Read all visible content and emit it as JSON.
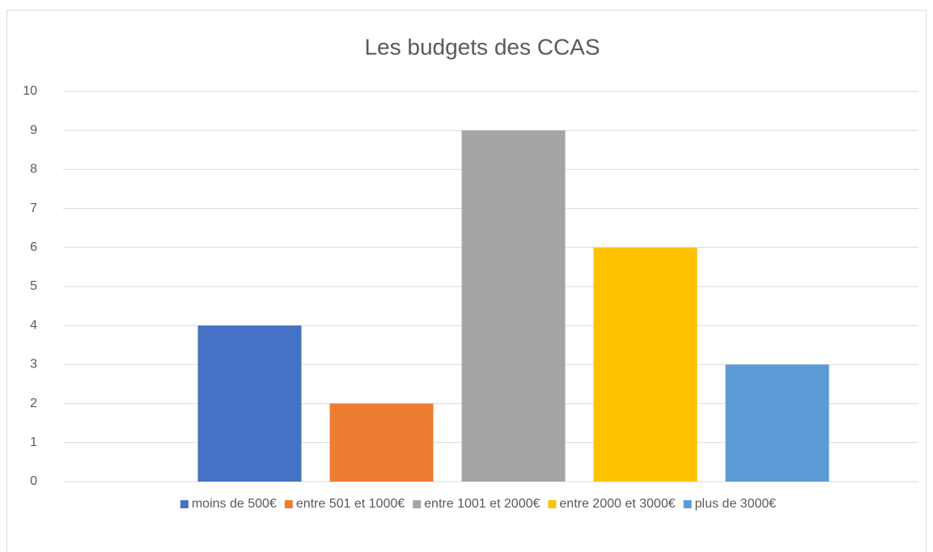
{
  "chart_data": {
    "type": "bar",
    "title": "Les budgets des CCAS",
    "categories": [
      null
    ],
    "series": [
      {
        "name": "moins de 500€",
        "color": "#4472c4",
        "values": [
          4
        ]
      },
      {
        "name": "entre 501 et 1000€",
        "color": "#ed7d31",
        "values": [
          2
        ]
      },
      {
        "name": "entre 1001 et 2000€",
        "color": "#a5a5a5",
        "values": [
          9
        ]
      },
      {
        "name": "entre 2000 et 3000€",
        "color": "#ffc000",
        "values": [
          6
        ]
      },
      {
        "name": "plus de 3000€",
        "color": "#5b9bd5",
        "values": [
          3
        ]
      }
    ],
    "ylim": [
      0,
      10
    ],
    "yticks": [
      0,
      1,
      2,
      3,
      4,
      5,
      6,
      7,
      8,
      9,
      10
    ],
    "grid": true,
    "legend": "bottom"
  }
}
